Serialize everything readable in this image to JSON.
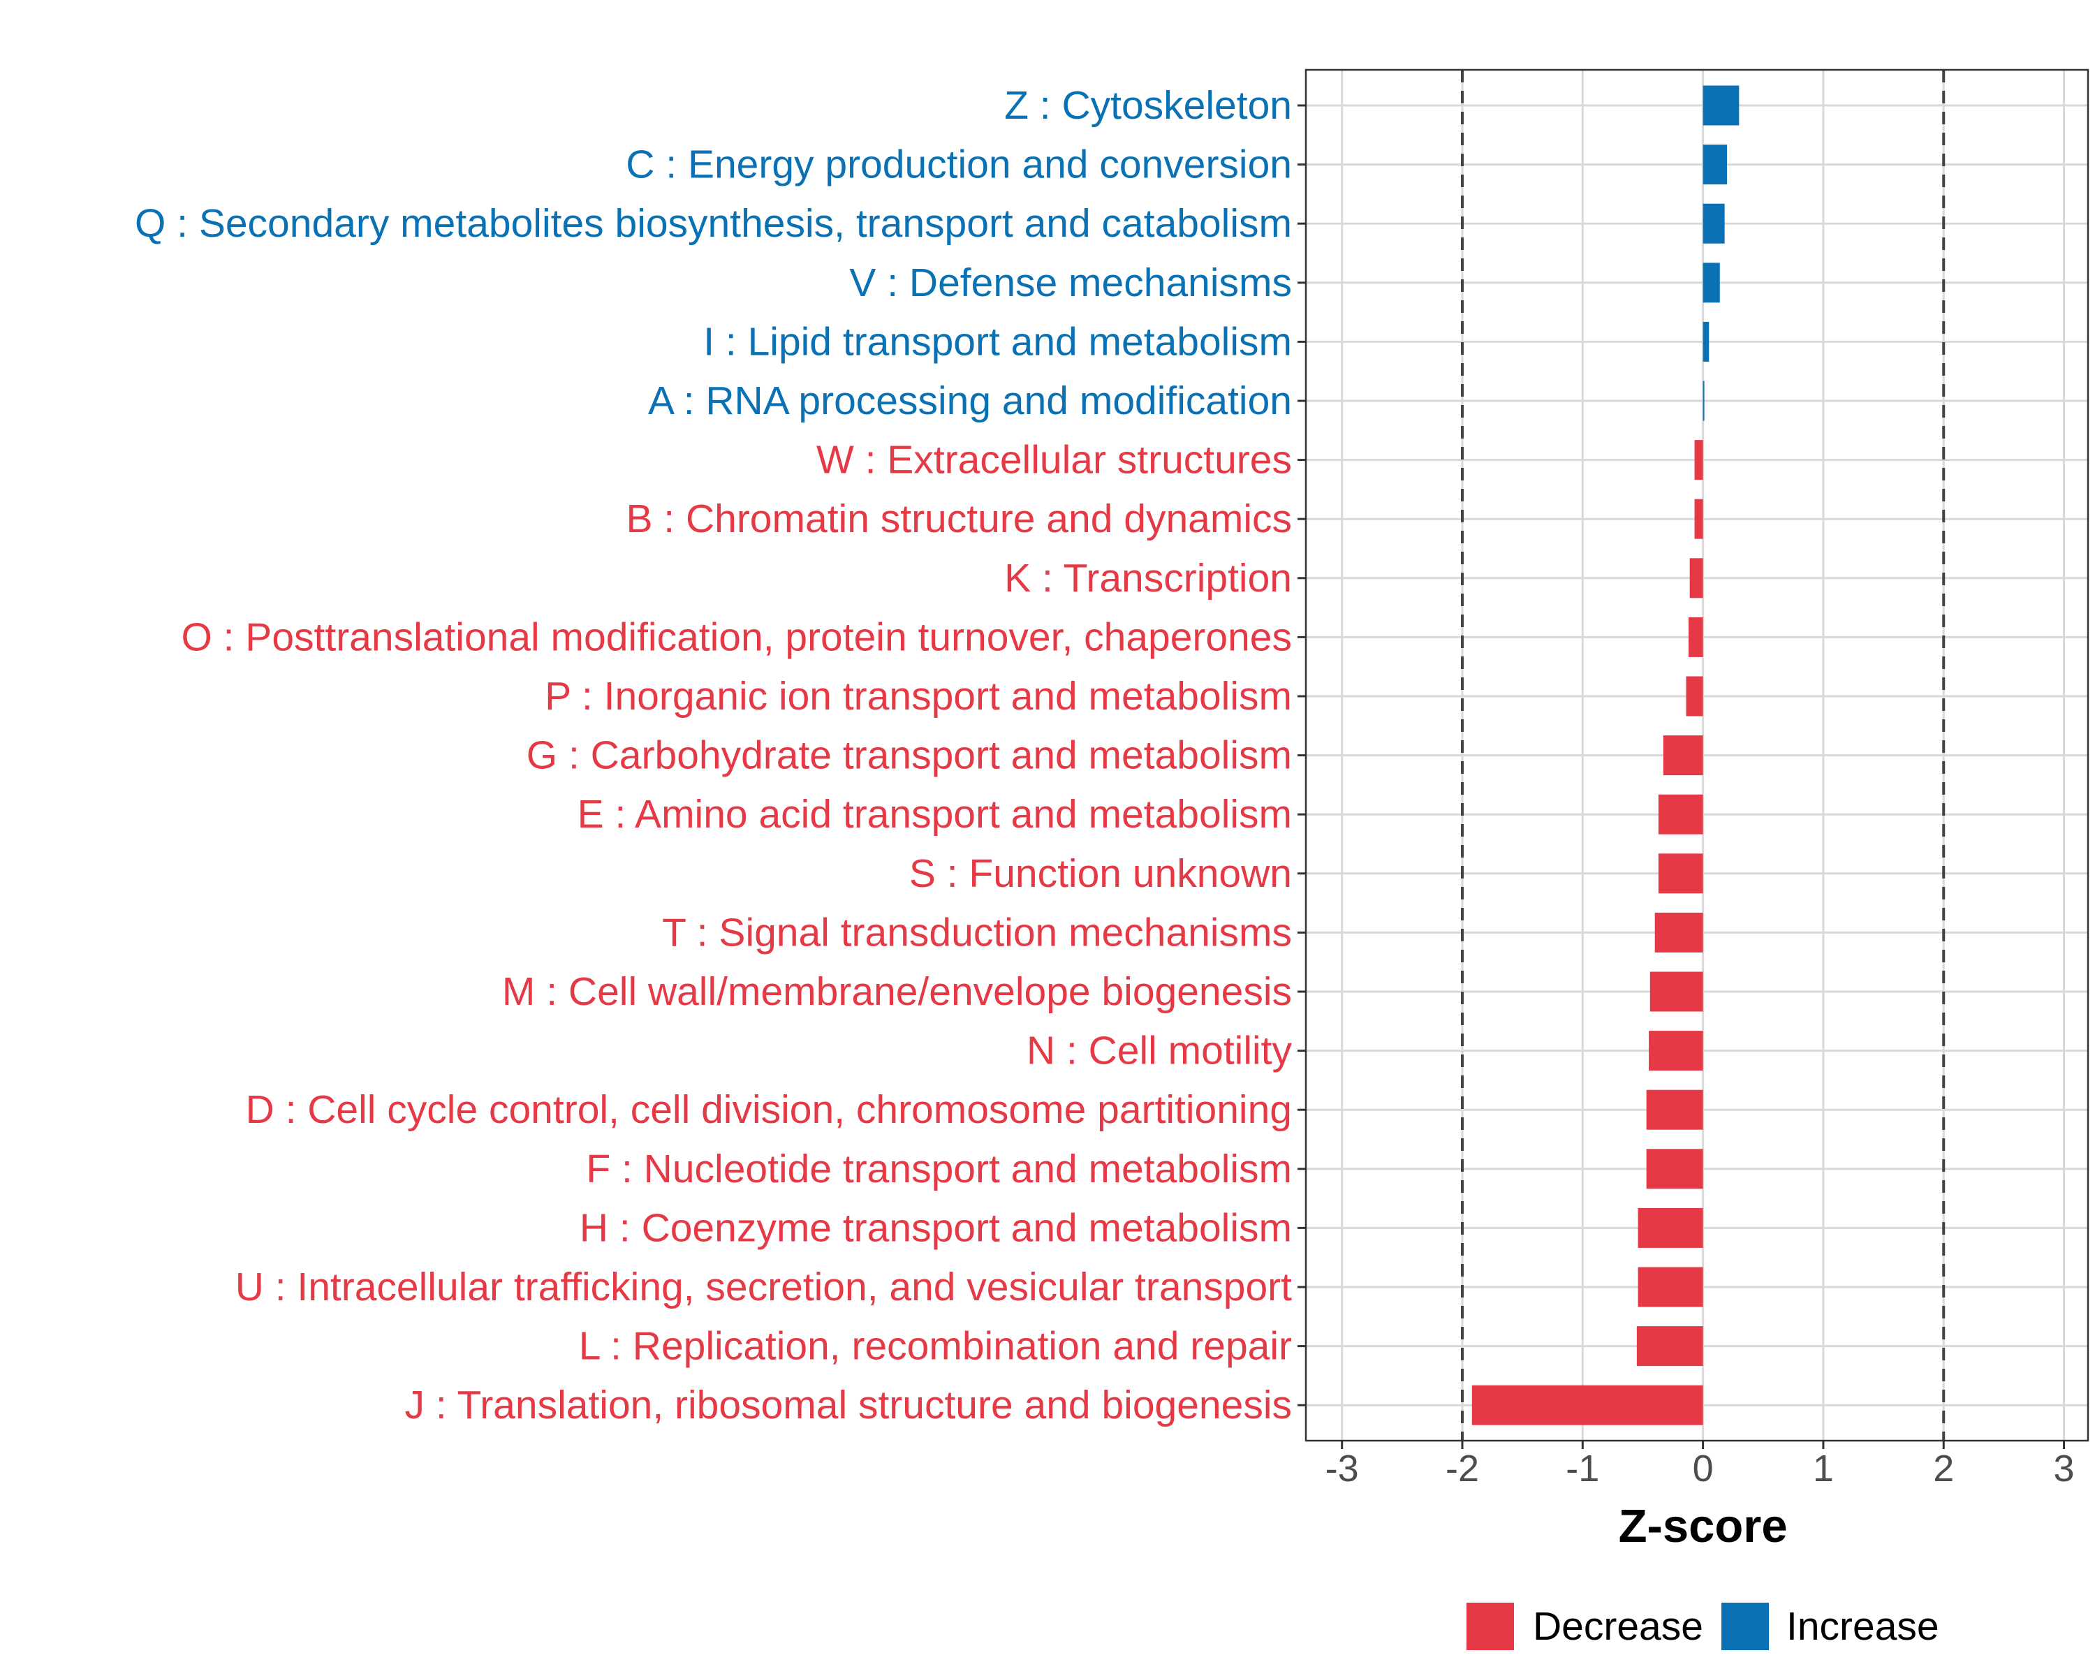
{
  "chart_data": {
    "type": "bar",
    "orientation": "horizontal",
    "categories": [
      "Z : Cytoskeleton",
      "C : Energy production and conversion",
      "Q : Secondary metabolites biosynthesis, transport and catabolism",
      "V : Defense mechanisms",
      "I : Lipid transport and metabolism",
      "A : RNA processing and modification",
      "W : Extracellular structures",
      "B : Chromatin structure and dynamics",
      "K : Transcription",
      "O : Posttranslational modification, protein turnover, chaperones",
      "P : Inorganic ion transport and metabolism",
      "G : Carbohydrate transport and metabolism",
      "E : Amino acid transport and metabolism",
      "S : Function unknown",
      "T : Signal transduction mechanisms",
      "M : Cell wall/membrane/envelope biogenesis",
      "N : Cell motility",
      "D : Cell cycle control, cell division, chromosome partitioning",
      "F : Nucleotide transport and metabolism",
      "H : Coenzyme transport and metabolism",
      "U : Intracellular trafficking, secretion, and vesicular transport",
      "L : Replication, recombination and repair",
      "J : Translation, ribosomal structure and biogenesis"
    ],
    "values": [
      0.3,
      0.2,
      0.18,
      0.14,
      0.05,
      0.01,
      -0.07,
      -0.07,
      -0.11,
      -0.12,
      -0.14,
      -0.33,
      -0.37,
      -0.37,
      -0.4,
      -0.44,
      -0.45,
      -0.47,
      -0.47,
      -0.54,
      -0.54,
      -0.55,
      -1.92
    ],
    "groups": [
      "Increase",
      "Increase",
      "Increase",
      "Increase",
      "Increase",
      "Increase",
      "Decrease",
      "Decrease",
      "Decrease",
      "Decrease",
      "Decrease",
      "Decrease",
      "Decrease",
      "Decrease",
      "Decrease",
      "Decrease",
      "Decrease",
      "Decrease",
      "Decrease",
      "Decrease",
      "Decrease",
      "Decrease",
      "Decrease"
    ],
    "xlabel": "Z-score",
    "ylabel": "",
    "xlim": [
      -3.3,
      3.2
    ],
    "xticks": [
      -3,
      -2,
      -1,
      0,
      1,
      2,
      3
    ],
    "xtick_labels": [
      "-3",
      "-2",
      "-1",
      "0",
      "1",
      "2",
      "3"
    ],
    "reference_lines": [
      -2,
      2
    ],
    "grid": true,
    "legend": {
      "position": "bottom",
      "entries": [
        {
          "label": "Decrease",
          "color": "#E63946"
        },
        {
          "label": "Increase",
          "color": "#0A72B4"
        }
      ]
    },
    "colors": {
      "Decrease": "#E63946",
      "Increase": "#0A72B4"
    }
  }
}
